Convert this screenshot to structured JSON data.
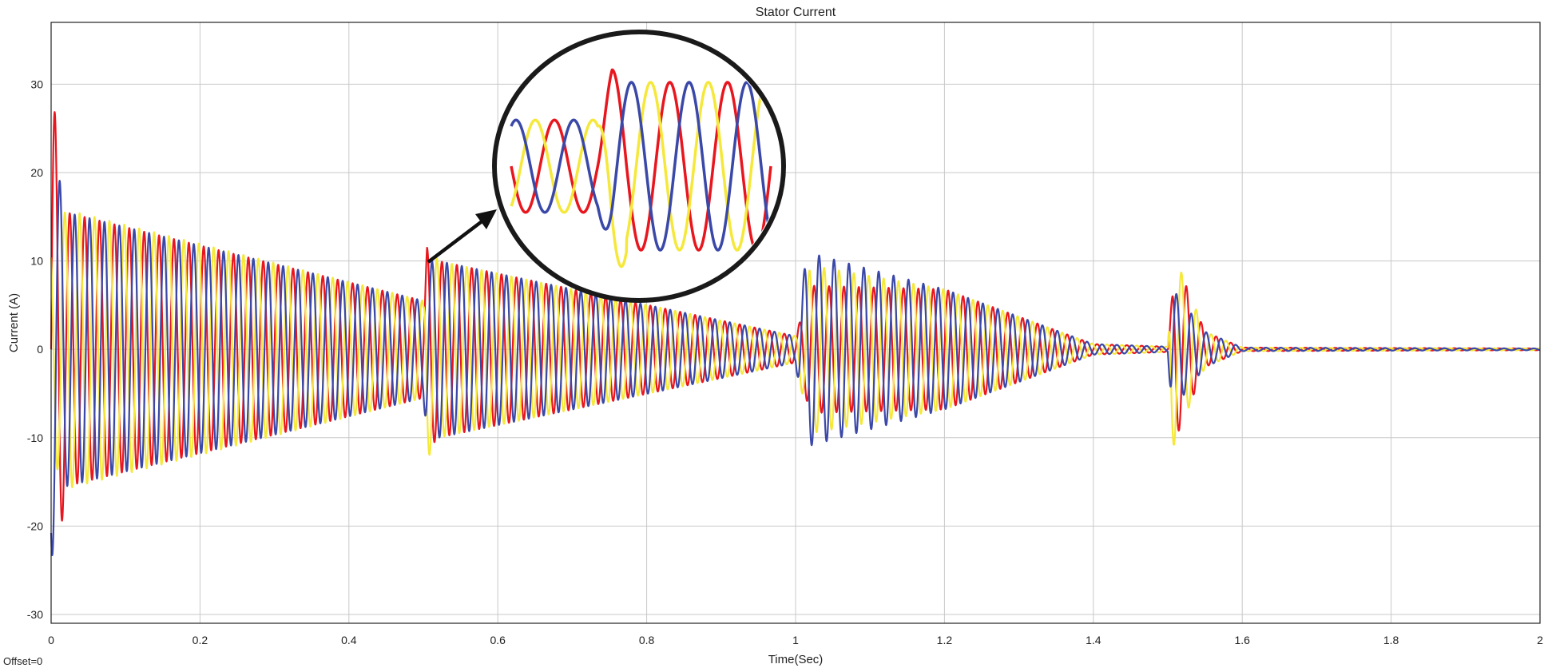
{
  "chart_data": {
    "type": "line",
    "title": "Stator Current",
    "xlabel": "Time(Sec)",
    "ylabel": "Current (A)",
    "footer_text": "Offset=0",
    "xlim": [
      0,
      2
    ],
    "ylim": [
      -31,
      37
    ],
    "grid": true,
    "legend": "none",
    "x_ticks": [
      "0",
      "0.2",
      "0.4",
      "0.6",
      "0.8",
      "1",
      "1.2",
      "1.4",
      "1.6",
      "1.8",
      "2"
    ],
    "x_tick_values": [
      0,
      0.2,
      0.4,
      0.6,
      0.8,
      1.0,
      1.2,
      1.4,
      1.6,
      1.8,
      2.0
    ],
    "y_ticks": [
      "30",
      "20",
      "10",
      "0",
      "-10",
      "-20",
      "-30"
    ],
    "y_tick_values": [
      30,
      20,
      10,
      0,
      -10,
      -20,
      -30
    ],
    "series": [
      {
        "color": "#e8161e",
        "phase_deg": 0,
        "peak_samples": [
          [
            0,
            30.5
          ],
          [
            0.02,
            15.5
          ],
          [
            0.5,
            5.5
          ],
          [
            0.505,
            11.5
          ],
          [
            0.52,
            10
          ],
          [
            1.0,
            1.5
          ],
          [
            1.02,
            7.2
          ],
          [
            1.2,
            6.8
          ],
          [
            1.4,
            0.6
          ],
          [
            1.5,
            0.3
          ],
          [
            1.51,
            10.2
          ],
          [
            1.55,
            2
          ],
          [
            1.6,
            0.2
          ],
          [
            2.0,
            0.1
          ]
        ]
      },
      {
        "color": "#f5e83a",
        "phase_deg": 120,
        "peak_samples": [
          [
            0,
            12
          ],
          [
            0.02,
            15.8
          ],
          [
            0.5,
            5.5
          ],
          [
            0.505,
            12.5
          ],
          [
            0.52,
            10
          ],
          [
            1.0,
            1.5
          ],
          [
            1.02,
            9.5
          ],
          [
            1.2,
            6.8
          ],
          [
            1.4,
            0.6
          ],
          [
            1.5,
            0.3
          ],
          [
            1.505,
            11.5
          ],
          [
            1.55,
            2
          ],
          [
            1.6,
            0.2
          ],
          [
            2.0,
            0.1
          ]
        ]
      },
      {
        "color": "#3a48a8",
        "phase_deg": 240,
        "peak_samples": [
          [
            0,
            24
          ],
          [
            0.02,
            15.5
          ],
          [
            0.5,
            5.5
          ],
          [
            0.505,
            10
          ],
          [
            0.52,
            10
          ],
          [
            1.0,
            1.5
          ],
          [
            1.015,
            11
          ],
          [
            1.2,
            6.8
          ],
          [
            1.4,
            0.6
          ],
          [
            1.5,
            0.3
          ],
          [
            1.505,
            7
          ],
          [
            1.55,
            2
          ],
          [
            1.6,
            0.2
          ],
          [
            2.0,
            0.1
          ]
        ]
      }
    ],
    "frequency_hz": 50
  }
}
